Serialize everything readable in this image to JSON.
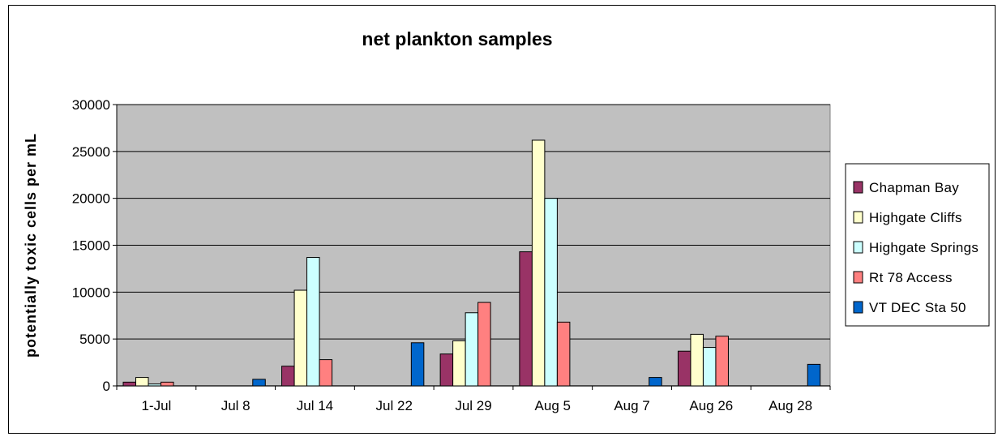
{
  "chart_data": {
    "type": "bar",
    "title": "net plankton samples",
    "xlabel": "",
    "ylabel": "potentially toxic cells per mL",
    "ylim": [
      0,
      30000
    ],
    "yticks": [
      0,
      5000,
      10000,
      15000,
      20000,
      25000,
      30000
    ],
    "grid": true,
    "legend_position": "right",
    "categories": [
      "1-Jul",
      "Jul 8",
      "Jul 14",
      "Jul 22",
      "Jul 29",
      "Aug 5",
      "Aug 7",
      "Aug 26",
      "Aug 28"
    ],
    "series": [
      {
        "name": "Chapman Bay",
        "color": "#993366",
        "values": [
          400,
          null,
          2100,
          null,
          3400,
          14300,
          null,
          3700,
          null
        ]
      },
      {
        "name": "Highgate Cliffs",
        "color": "#FFFFCC",
        "values": [
          900,
          null,
          10200,
          null,
          4800,
          26200,
          null,
          5500,
          null
        ]
      },
      {
        "name": "Highgate Springs",
        "color": "#CCFFFF",
        "values": [
          200,
          null,
          13700,
          null,
          7800,
          20000,
          null,
          4100,
          null
        ]
      },
      {
        "name": "Rt 78 Access",
        "color": "#FF8080",
        "values": [
          400,
          null,
          2800,
          null,
          8900,
          6800,
          null,
          5300,
          null
        ]
      },
      {
        "name": "VT DEC Sta 50",
        "color": "#0066CC",
        "values": [
          null,
          700,
          null,
          4600,
          null,
          null,
          900,
          null,
          2300
        ]
      }
    ],
    "plot_background": "#C0C0C0"
  }
}
